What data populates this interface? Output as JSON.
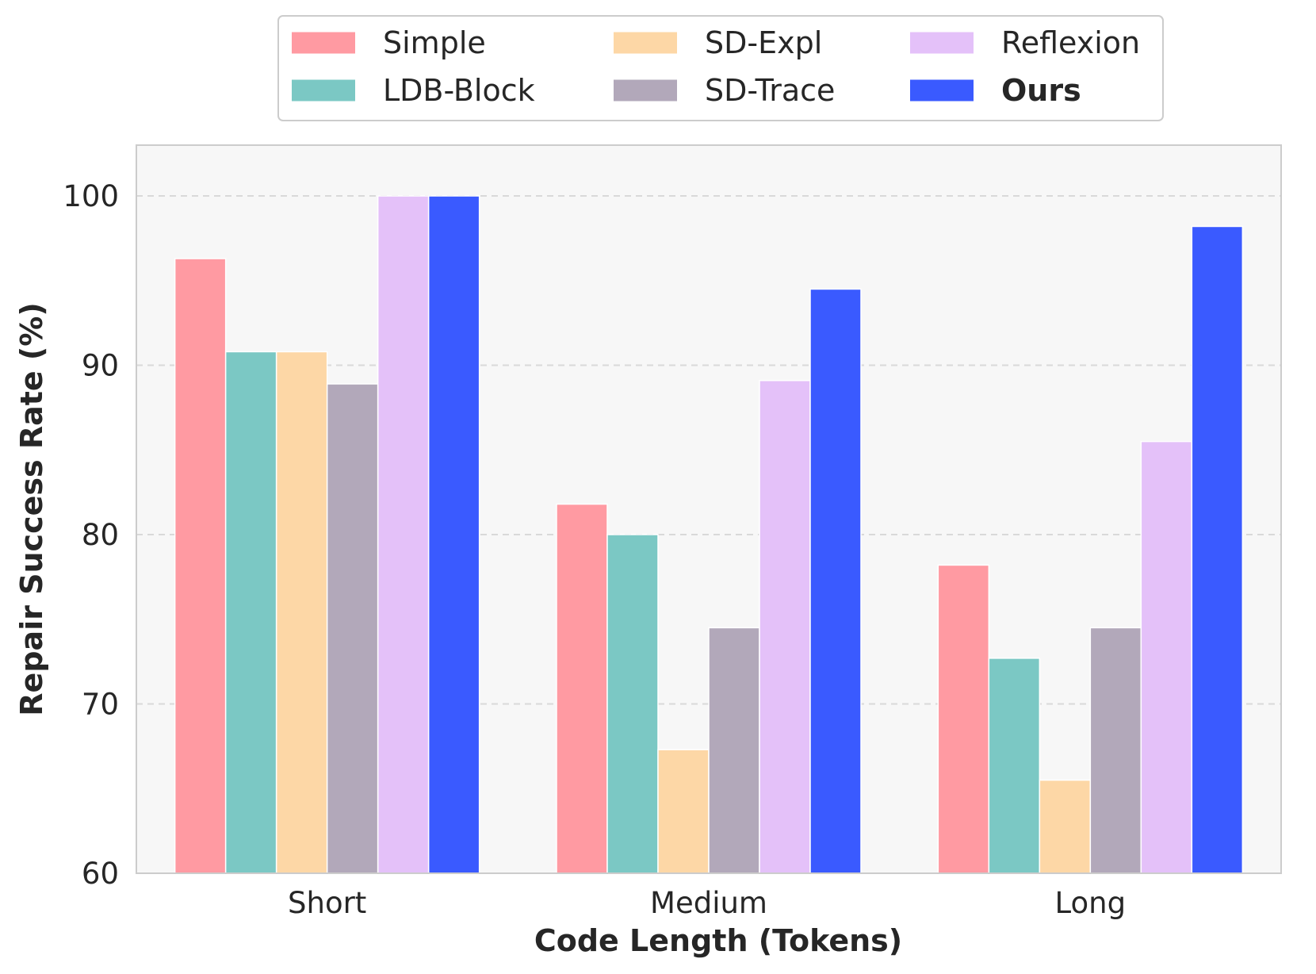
{
  "chart_data": {
    "type": "bar",
    "title": "",
    "xlabel": "Code Length (Tokens)",
    "ylabel": "Repair Success Rate (%)",
    "categories": [
      "Short",
      "Medium",
      "Long"
    ],
    "ylim": [
      60,
      103
    ],
    "yticks": [
      60,
      70,
      80,
      90,
      100
    ],
    "grid": "horizontal dashed",
    "legend_position": "top-center",
    "series": [
      {
        "name": "Simple",
        "color": "#FF9AA2",
        "bold": false,
        "values": [
          96.3,
          81.8,
          78.2
        ]
      },
      {
        "name": "LDB-Block",
        "color": "#7BC8C4",
        "bold": false,
        "values": [
          90.8,
          80.0,
          72.7
        ]
      },
      {
        "name": "SD-Expl",
        "color": "#FDD7A6",
        "bold": false,
        "values": [
          90.8,
          67.3,
          65.5
        ]
      },
      {
        "name": "SD-Trace",
        "color": "#B2A8BA",
        "bold": false,
        "values": [
          88.9,
          74.5,
          74.5
        ]
      },
      {
        "name": "Reflexion",
        "color": "#E4C1F9",
        "bold": false,
        "values": [
          100.0,
          89.1,
          85.5
        ]
      },
      {
        "name": "Ours",
        "color": "#3A5AFF",
        "bold": true,
        "values": [
          100.0,
          94.5,
          98.2
        ]
      }
    ]
  }
}
